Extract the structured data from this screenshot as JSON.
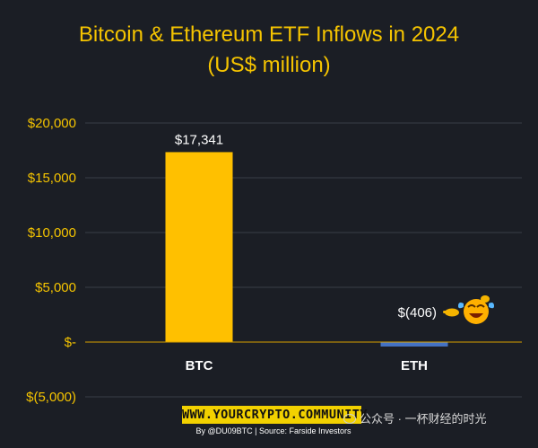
{
  "title": {
    "line1": "Bitcoin & Ethereum ETF Inflows in 2024",
    "line2": "(US$ million)"
  },
  "chart_data": {
    "type": "bar",
    "categories": [
      "BTC",
      "ETH"
    ],
    "values": [
      17341,
      -406
    ],
    "value_labels": [
      "$17,341",
      "$(406)"
    ],
    "ylim": [
      -5000,
      20000
    ],
    "yticks": [
      20000,
      15000,
      10000,
      5000,
      0,
      -5000
    ],
    "ytick_labels": [
      "$20,000",
      "$15,000",
      "$10,000",
      "$5,000",
      "$-",
      "$(5,000)"
    ],
    "grid": true,
    "bar_colors": [
      "#ffc000",
      "#4472c4"
    ],
    "annotation": "laughing-emoji"
  },
  "colors": {
    "background": "#1b1e25",
    "title": "#f5c400",
    "axis_text": "#f5c400",
    "gridline": "#3a3e46"
  },
  "footer": {
    "banner": "WWW.YOURCRYPTO.COMMUNITY",
    "credit": "By @DU09BTC | Source: Farside Investors"
  },
  "watermark": {
    "text": "公众号 · 一杯财经的时光"
  }
}
